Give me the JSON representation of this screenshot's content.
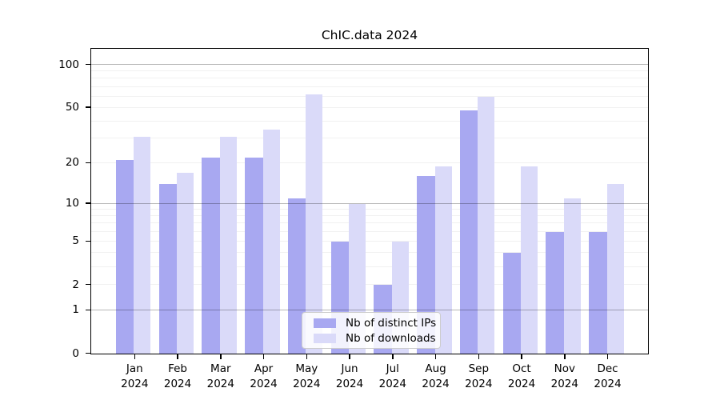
{
  "title": "ChIC.data 2024",
  "chart_data": {
    "type": "bar",
    "title": "ChIC.data 2024",
    "months": [
      "Jan",
      "Feb",
      "Mar",
      "Apr",
      "May",
      "Jun",
      "Jul",
      "Aug",
      "Sep",
      "Oct",
      "Nov",
      "Dec"
    ],
    "year": "2024",
    "series": [
      {
        "name": "Nb of distinct IPs",
        "color": "#a8a8f1",
        "values": [
          21,
          14,
          22,
          22,
          11,
          5,
          2,
          16,
          48,
          4,
          6,
          6
        ]
      },
      {
        "name": "Nb of downloads",
        "color": "#dadaf9",
        "values": [
          31,
          17,
          31,
          35,
          62,
          10,
          5,
          19,
          60,
          19,
          11,
          14
        ]
      }
    ],
    "y_axis": {
      "scale": "log1p",
      "tick_values": [
        100,
        50,
        20,
        10,
        5,
        2,
        1,
        0
      ],
      "max": 128,
      "major_gridlines": [
        1,
        10,
        100
      ],
      "minor_gridlines": [
        2,
        3,
        4,
        5,
        6,
        7,
        8,
        9,
        20,
        30,
        40,
        50,
        60,
        70,
        80,
        90
      ]
    },
    "legend_position": "bottom-center",
    "grid": true
  }
}
